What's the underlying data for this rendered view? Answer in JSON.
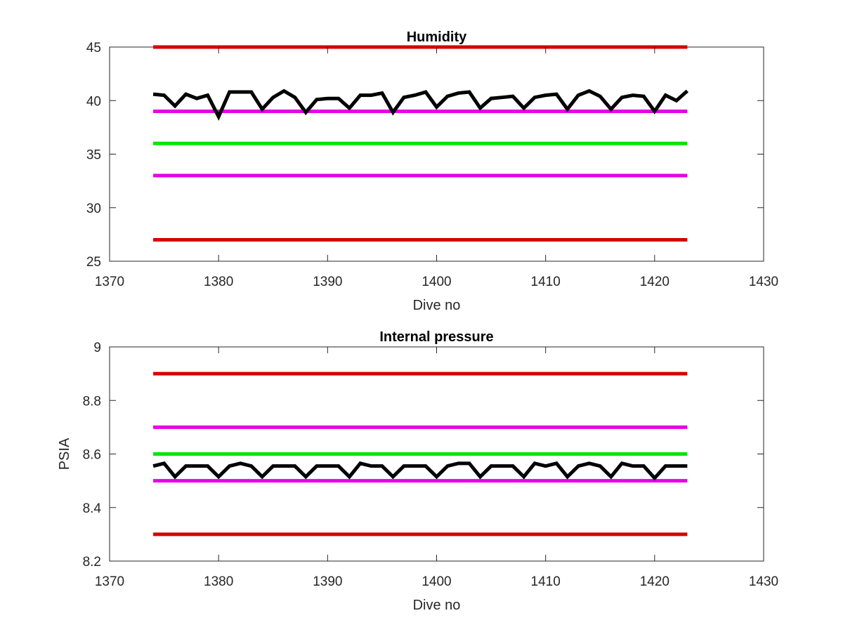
{
  "colors": {
    "limit_outer": "#d40000",
    "limit_inner": "#e600e6",
    "target": "#00e600",
    "measured": "#000000",
    "axes": "#262626"
  },
  "chart_data": [
    {
      "type": "line",
      "title": "Humidity",
      "xlabel": "Dive no",
      "ylabel": "",
      "xlim": [
        1370,
        1430
      ],
      "ylim": [
        25,
        45
      ],
      "xticks": [
        1370,
        1380,
        1390,
        1400,
        1410,
        1420,
        1430
      ],
      "yticks": [
        25,
        30,
        35,
        40,
        45
      ],
      "grid": false,
      "series": [
        {
          "role": "upper-limit-outer",
          "color_key": "limit_outer",
          "x": [
            1374,
            1423
          ],
          "y": [
            45,
            45
          ]
        },
        {
          "role": "upper-limit-inner",
          "color_key": "limit_inner",
          "x": [
            1374,
            1423
          ],
          "y": [
            39,
            39
          ]
        },
        {
          "role": "target",
          "color_key": "target",
          "x": [
            1374,
            1423
          ],
          "y": [
            36,
            36
          ]
        },
        {
          "role": "lower-limit-inner",
          "color_key": "limit_inner",
          "x": [
            1374,
            1423
          ],
          "y": [
            33,
            33
          ]
        },
        {
          "role": "lower-limit-outer",
          "color_key": "limit_outer",
          "x": [
            1374,
            1423
          ],
          "y": [
            27,
            27
          ]
        },
        {
          "role": "measured",
          "color_key": "measured",
          "x": [
            1374,
            1375,
            1376,
            1377,
            1378,
            1379,
            1380,
            1381,
            1382,
            1383,
            1384,
            1385,
            1386,
            1387,
            1388,
            1389,
            1390,
            1391,
            1392,
            1393,
            1394,
            1395,
            1396,
            1397,
            1398,
            1399,
            1400,
            1401,
            1402,
            1403,
            1404,
            1405,
            1406,
            1407,
            1408,
            1409,
            1410,
            1411,
            1412,
            1413,
            1414,
            1415,
            1416,
            1417,
            1418,
            1419,
            1420,
            1421,
            1422,
            1423
          ],
          "y": [
            40.6,
            40.5,
            39.5,
            40.6,
            40.2,
            40.5,
            38.5,
            40.8,
            40.8,
            40.8,
            39.2,
            40.3,
            40.9,
            40.3,
            38.9,
            40.1,
            40.2,
            40.2,
            39.3,
            40.5,
            40.5,
            40.7,
            38.9,
            40.3,
            40.5,
            40.8,
            39.4,
            40.4,
            40.7,
            40.8,
            39.3,
            40.2,
            40.3,
            40.4,
            39.3,
            40.3,
            40.5,
            40.6,
            39.2,
            40.5,
            40.9,
            40.4,
            39.2,
            40.3,
            40.5,
            40.4,
            39.0,
            40.5,
            40.0,
            40.9
          ]
        }
      ]
    },
    {
      "type": "line",
      "title": "Internal pressure",
      "xlabel": "Dive no",
      "ylabel": "PSIA",
      "xlim": [
        1370,
        1430
      ],
      "ylim": [
        8.2,
        9.0
      ],
      "xticks": [
        1370,
        1380,
        1390,
        1400,
        1410,
        1420,
        1430
      ],
      "yticks": [
        8.2,
        8.4,
        8.6,
        8.8,
        9.0
      ],
      "ytick_labels": [
        "8.2",
        "8.4",
        "8.6",
        "8.8",
        "9"
      ],
      "grid": false,
      "series": [
        {
          "role": "upper-limit-outer",
          "color_key": "limit_outer",
          "x": [
            1374,
            1423
          ],
          "y": [
            8.9,
            8.9
          ]
        },
        {
          "role": "upper-limit-inner",
          "color_key": "limit_inner",
          "x": [
            1374,
            1423
          ],
          "y": [
            8.7,
            8.7
          ]
        },
        {
          "role": "target",
          "color_key": "target",
          "x": [
            1374,
            1423
          ],
          "y": [
            8.6,
            8.6
          ]
        },
        {
          "role": "lower-limit-inner",
          "color_key": "limit_inner",
          "x": [
            1374,
            1423
          ],
          "y": [
            8.5,
            8.5
          ]
        },
        {
          "role": "lower-limit-outer",
          "color_key": "limit_outer",
          "x": [
            1374,
            1423
          ],
          "y": [
            8.3,
            8.3
          ]
        },
        {
          "role": "measured",
          "color_key": "measured",
          "x": [
            1374,
            1375,
            1376,
            1377,
            1378,
            1379,
            1380,
            1381,
            1382,
            1383,
            1384,
            1385,
            1386,
            1387,
            1388,
            1389,
            1390,
            1391,
            1392,
            1393,
            1394,
            1395,
            1396,
            1397,
            1398,
            1399,
            1400,
            1401,
            1402,
            1403,
            1404,
            1405,
            1406,
            1407,
            1408,
            1409,
            1410,
            1411,
            1412,
            1413,
            1414,
            1415,
            1416,
            1417,
            1418,
            1419,
            1420,
            1421,
            1422,
            1423
          ],
          "y": [
            8.555,
            8.565,
            8.515,
            8.555,
            8.555,
            8.555,
            8.515,
            8.555,
            8.565,
            8.555,
            8.515,
            8.555,
            8.555,
            8.555,
            8.515,
            8.555,
            8.555,
            8.555,
            8.515,
            8.565,
            8.555,
            8.555,
            8.515,
            8.555,
            8.555,
            8.555,
            8.515,
            8.555,
            8.565,
            8.565,
            8.515,
            8.555,
            8.555,
            8.555,
            8.515,
            8.565,
            8.555,
            8.565,
            8.515,
            8.555,
            8.565,
            8.555,
            8.515,
            8.565,
            8.555,
            8.555,
            8.51,
            8.555,
            8.555,
            8.555
          ]
        }
      ]
    }
  ]
}
